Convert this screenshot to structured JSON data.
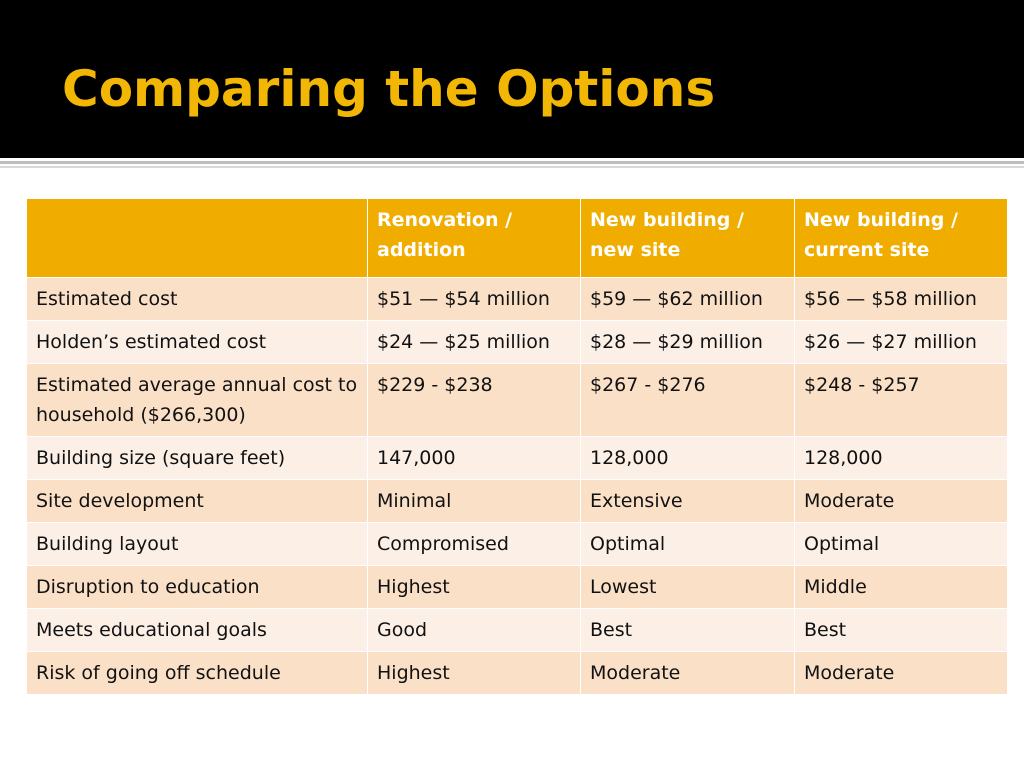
{
  "slide": {
    "title": "Comparing the Options"
  },
  "colors": {
    "title_bar": "#000000",
    "title_text": "#f2b705",
    "header_bg": "#f0ad00",
    "row_odd": "#fae0c7",
    "row_even": "#fcefe6"
  },
  "table": {
    "headers": [
      "",
      "Renovation / addition",
      "New building / new site",
      "New building / current site"
    ],
    "rows": [
      [
        "Estimated cost",
        "$51 — $54 million",
        "$59 — $62 million",
        "$56 — $58 million"
      ],
      [
        "Holden’s estimated cost",
        "$24 — $25 million",
        "$28 — $29 million",
        "$26 — $27 million"
      ],
      [
        "Estimated average annual cost to household ($266,300)",
        "$229 - $238",
        "$267 - $276",
        "$248 - $257"
      ],
      [
        "Building size (square feet)",
        "147,000",
        "128,000",
        "128,000"
      ],
      [
        "Site development",
        "Minimal",
        "Extensive",
        "Moderate"
      ],
      [
        "Building layout",
        "Compromised",
        "Optimal",
        "Optimal"
      ],
      [
        "Disruption to education",
        "Highest",
        "Lowest",
        "Middle"
      ],
      [
        "Meets educational goals",
        "Good",
        "Best",
        "Best"
      ],
      [
        "Risk of going off schedule",
        "Highest",
        "Moderate",
        "Moderate"
      ]
    ]
  }
}
